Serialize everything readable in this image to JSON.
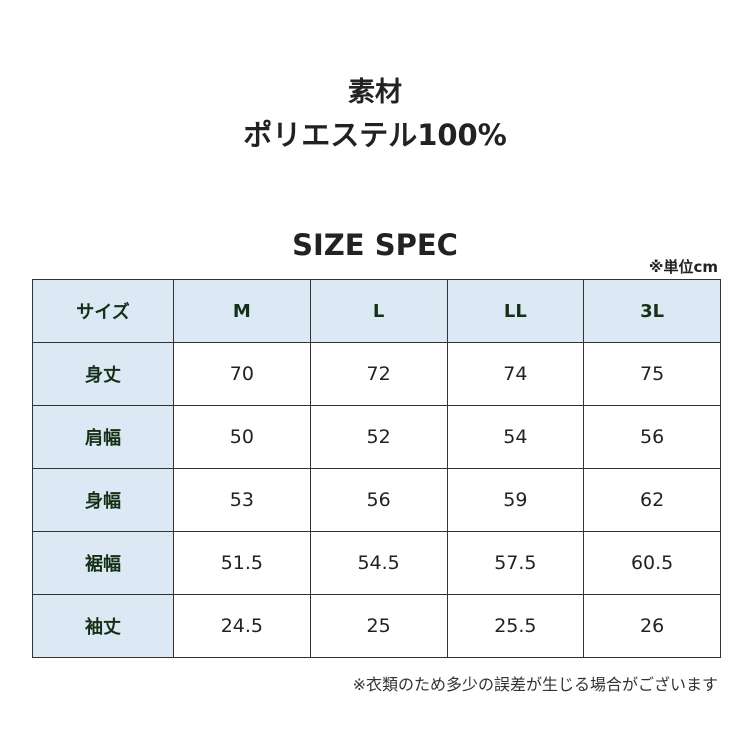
{
  "material_heading": "素材",
  "material_value": "ポリエステル100%",
  "spec_title": "SIZE SPEC",
  "unit_note": "※単位cm",
  "header_color": "#dce9f5",
  "table": {
    "columns": [
      "サイズ",
      "M",
      "L",
      "LL",
      "3L"
    ],
    "rows": [
      {
        "label": "身丈",
        "values": [
          "70",
          "72",
          "74",
          "75"
        ]
      },
      {
        "label": "肩幅",
        "values": [
          "50",
          "52",
          "54",
          "56"
        ]
      },
      {
        "label": "身幅",
        "values": [
          "53",
          "56",
          "59",
          "62"
        ]
      },
      {
        "label": "裾幅",
        "values": [
          "51.5",
          "54.5",
          "57.5",
          "60.5"
        ]
      },
      {
        "label": "袖丈",
        "values": [
          "24.5",
          "25",
          "25.5",
          "26"
        ]
      }
    ]
  },
  "footnote": "※衣類のため多少の誤差が生じる場合がございます"
}
